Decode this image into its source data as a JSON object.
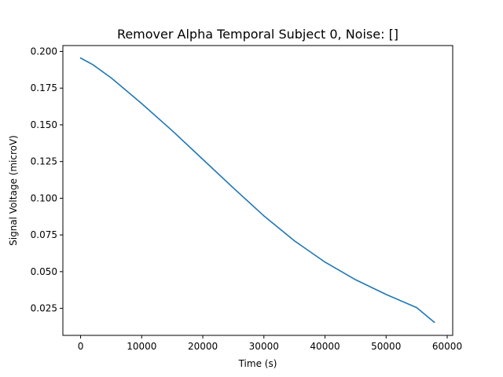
{
  "chart_data": {
    "type": "line",
    "title": "Remover Alpha Temporal Subject 0, Noise: []",
    "xlabel": "Time (s)",
    "ylabel": "Signal Voltage (microV)",
    "xlim": [
      -2900,
      60900
    ],
    "ylim": [
      0.0066,
      0.204
    ],
    "x_ticks": [
      0,
      10000,
      20000,
      30000,
      40000,
      50000,
      60000
    ],
    "x_tick_labels": [
      "0",
      "10000",
      "20000",
      "30000",
      "40000",
      "50000",
      "60000"
    ],
    "y_ticks": [
      0.025,
      0.05,
      0.075,
      0.1,
      0.125,
      0.15,
      0.175,
      0.2
    ],
    "y_tick_labels": [
      "0.025",
      "0.050",
      "0.075",
      "0.100",
      "0.125",
      "0.150",
      "0.175",
      "0.200"
    ],
    "grid": false,
    "series": [
      {
        "color": "#1f77b4",
        "x": [
          0,
          2000,
          5000,
          10000,
          15000,
          20000,
          25000,
          30000,
          35000,
          40000,
          45000,
          50000,
          55000,
          57900
        ],
        "y": [
          0.1955,
          0.191,
          0.182,
          0.1645,
          0.146,
          0.1265,
          0.107,
          0.088,
          0.071,
          0.0565,
          0.0445,
          0.0345,
          0.0255,
          0.0155
        ]
      }
    ]
  }
}
